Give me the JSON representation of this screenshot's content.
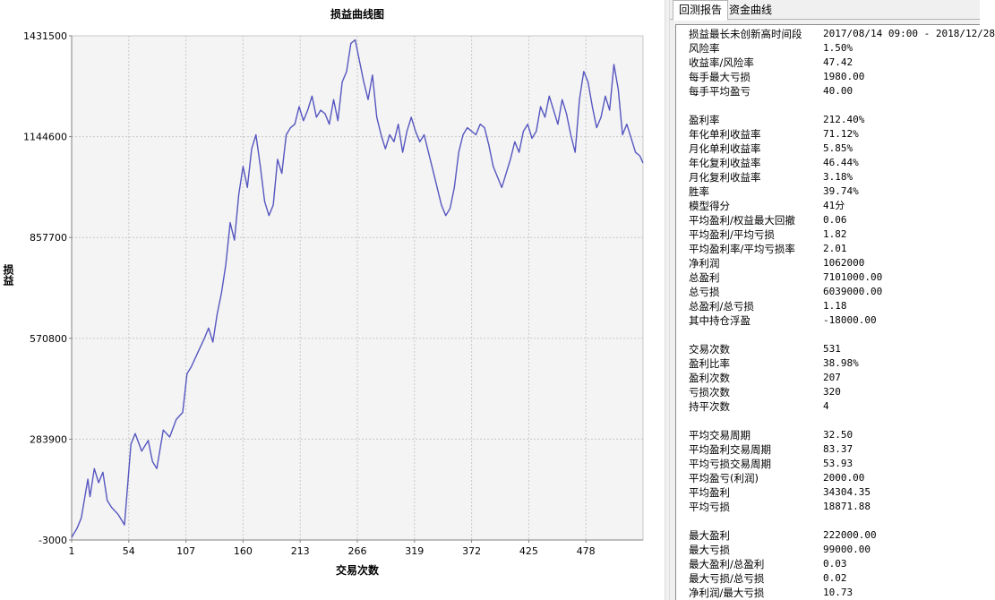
{
  "chart": {
    "title": "损益曲线图",
    "ylabel": "损益",
    "xlabel": "交易次数"
  },
  "chart_data": {
    "type": "line",
    "title": "损益曲线图",
    "xlabel": "交易次数",
    "ylabel": "损益",
    "x_ticks": [
      1,
      54,
      107,
      160,
      213,
      266,
      319,
      372,
      425,
      478
    ],
    "y_ticks": [
      -3000,
      283900,
      570800,
      857700,
      1144600,
      1431500
    ],
    "xlim": [
      1,
      531
    ],
    "ylim": [
      -3000,
      1431500
    ],
    "grid": true,
    "line_color": "#5656c0",
    "series": [
      {
        "x": [
          1,
          6,
          10,
          16,
          18,
          22,
          26,
          30,
          34,
          38,
          44,
          50,
          56,
          60,
          66,
          72,
          76,
          80,
          86,
          92,
          98,
          104,
          108,
          112,
          118,
          124,
          128,
          132,
          136,
          140,
          144,
          148,
          152,
          156,
          160,
          164,
          168,
          172,
          176,
          180,
          184,
          188,
          192,
          196,
          200,
          204,
          208,
          212,
          216,
          220,
          224,
          228,
          232,
          236,
          240,
          244,
          248,
          252,
          256,
          260,
          264,
          268,
          272,
          276,
          280,
          284,
          288,
          292,
          296,
          300,
          304,
          308,
          312,
          316,
          320,
          324,
          328,
          332,
          336,
          340,
          344,
          348,
          352,
          356,
          360,
          364,
          368,
          372,
          376,
          380,
          384,
          388,
          392,
          396,
          400,
          404,
          408,
          412,
          416,
          420,
          424,
          428,
          432,
          436,
          440,
          444,
          448,
          452,
          456,
          460,
          464,
          468,
          472,
          476,
          480,
          484,
          488,
          492,
          496,
          500,
          504,
          508,
          512,
          516,
          520,
          524,
          528,
          531
        ],
        "y": [
          5000,
          30000,
          60000,
          170000,
          120000,
          200000,
          160000,
          190000,
          110000,
          90000,
          70000,
          40000,
          270000,
          300000,
          250000,
          280000,
          220000,
          200000,
          310000,
          290000,
          340000,
          360000,
          470000,
          490000,
          530000,
          570000,
          600000,
          560000,
          640000,
          700000,
          780000,
          900000,
          850000,
          980000,
          1060000,
          1000000,
          1110000,
          1150000,
          1060000,
          960000,
          920000,
          950000,
          1080000,
          1040000,
          1150000,
          1170000,
          1180000,
          1230000,
          1190000,
          1220000,
          1260000,
          1200000,
          1220000,
          1210000,
          1180000,
          1250000,
          1190000,
          1300000,
          1330000,
          1410000,
          1420000,
          1360000,
          1300000,
          1250000,
          1320000,
          1200000,
          1150000,
          1110000,
          1150000,
          1130000,
          1180000,
          1100000,
          1160000,
          1200000,
          1160000,
          1130000,
          1150000,
          1100000,
          1050000,
          1000000,
          950000,
          920000,
          940000,
          1000000,
          1100000,
          1150000,
          1170000,
          1160000,
          1150000,
          1180000,
          1170000,
          1120000,
          1060000,
          1030000,
          1000000,
          1040000,
          1080000,
          1130000,
          1100000,
          1160000,
          1180000,
          1140000,
          1160000,
          1230000,
          1200000,
          1260000,
          1220000,
          1180000,
          1250000,
          1210000,
          1150000,
          1100000,
          1250000,
          1330000,
          1300000,
          1230000,
          1170000,
          1200000,
          1260000,
          1220000,
          1350000,
          1280000,
          1150000,
          1180000,
          1140000,
          1100000,
          1090000,
          1070000
        ]
      }
    ]
  },
  "tabs": [
    {
      "label": "回测报告",
      "active": true
    },
    {
      "label": "资金曲线",
      "active": false
    }
  ],
  "report": [
    {
      "k": "损益最长未创新高时间段",
      "v": "2017/08/14 09:00 - 2018/12/28"
    },
    {
      "k": "风险率",
      "v": "1.50%"
    },
    {
      "k": "收益率/风险率",
      "v": "47.42"
    },
    {
      "k": "每手最大亏损",
      "v": "1980.00"
    },
    {
      "k": "每手平均盈亏",
      "v": "40.00"
    },
    {
      "k": "",
      "v": ""
    },
    {
      "k": "盈利率",
      "v": "212.40%"
    },
    {
      "k": "年化单利收益率",
      "v": "71.12%"
    },
    {
      "k": "月化单利收益率",
      "v": "5.85%"
    },
    {
      "k": "年化复利收益率",
      "v": "46.44%"
    },
    {
      "k": "月化复利收益率",
      "v": "3.18%"
    },
    {
      "k": "胜率",
      "v": "39.74%"
    },
    {
      "k": "模型得分",
      "v": "41分"
    },
    {
      "k": "平均盈利/权益最大回撤",
      "v": "0.06"
    },
    {
      "k": "平均盈利/平均亏损",
      "v": "1.82"
    },
    {
      "k": "平均盈利率/平均亏损率",
      "v": "2.01"
    },
    {
      "k": "净利润",
      "v": "1062000"
    },
    {
      "k": "总盈利",
      "v": "7101000.00"
    },
    {
      "k": "总亏损",
      "v": "6039000.00"
    },
    {
      "k": "总盈利/总亏损",
      "v": "1.18"
    },
    {
      "k": "其中持仓浮盈",
      "v": "-18000.00"
    },
    {
      "k": "",
      "v": ""
    },
    {
      "k": "交易次数",
      "v": "531"
    },
    {
      "k": "盈利比率",
      "v": "38.98%"
    },
    {
      "k": "盈利次数",
      "v": "207"
    },
    {
      "k": "亏损次数",
      "v": "320"
    },
    {
      "k": "持平次数",
      "v": "4"
    },
    {
      "k": "",
      "v": ""
    },
    {
      "k": "平均交易周期",
      "v": "32.50"
    },
    {
      "k": "平均盈利交易周期",
      "v": "83.37"
    },
    {
      "k": "平均亏损交易周期",
      "v": "53.93"
    },
    {
      "k": "平均盈亏(利润)",
      "v": "2000.00"
    },
    {
      "k": "平均盈利",
      "v": "34304.35"
    },
    {
      "k": "平均亏损",
      "v": "18871.88"
    },
    {
      "k": "",
      "v": ""
    },
    {
      "k": "最大盈利",
      "v": "222000.00"
    },
    {
      "k": "最大亏损",
      "v": "99000.00"
    },
    {
      "k": "最大盈利/总盈利",
      "v": "0.03"
    },
    {
      "k": "最大亏损/总亏损",
      "v": "0.02"
    },
    {
      "k": "净利润/最大亏损",
      "v": "10.73"
    }
  ]
}
